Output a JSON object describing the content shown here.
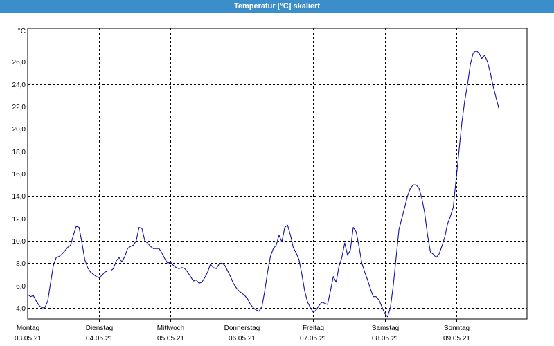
{
  "window": {
    "title": "Temperatur [°C] skaliert"
  },
  "colors": {
    "titlebar": "#3b8ec9",
    "series": "#1010a0",
    "grid": "#000000"
  },
  "chart_data": {
    "type": "line",
    "title": "Temperatur [°C] skaliert",
    "ylabel": "°C",
    "xlabel": "",
    "ylim": [
      3.0,
      29.0
    ],
    "grid": true,
    "yticks": [
      {
        "value": 4.0,
        "label": "4,0"
      },
      {
        "value": 6.0,
        "label": "6,0"
      },
      {
        "value": 8.0,
        "label": "8,0"
      },
      {
        "value": 10.0,
        "label": "10,0"
      },
      {
        "value": 12.0,
        "label": "12,0"
      },
      {
        "value": 14.0,
        "label": "14,0"
      },
      {
        "value": 16.0,
        "label": "16,0"
      },
      {
        "value": 18.0,
        "label": "18,0"
      },
      {
        "value": 20.0,
        "label": "20,0"
      },
      {
        "value": 22.0,
        "label": "22,0"
      },
      {
        "value": 24.0,
        "label": "24,0"
      },
      {
        "value": 26.0,
        "label": "26,0"
      }
    ],
    "days": [
      {
        "day": "Montag",
        "date": "03.05.21"
      },
      {
        "day": "Dienstag",
        "date": "04.05.21"
      },
      {
        "day": "Mittwoch",
        "date": "05.05.21"
      },
      {
        "day": "Donnerstag",
        "date": "06.05.21"
      },
      {
        "day": "Freitag",
        "date": "07.05.21"
      },
      {
        "day": "Samstag",
        "date": "08.05.21"
      },
      {
        "day": "Sonntag",
        "date": "09.05.21"
      }
    ],
    "x_unit": "days since start of 03.05.21",
    "x_range": [
      0,
      7.05
    ],
    "series": [
      {
        "name": "Temperatur",
        "points": [
          [
            0.0,
            5.2
          ],
          [
            0.04,
            5.0
          ],
          [
            0.08,
            5.1
          ],
          [
            0.12,
            4.6
          ],
          [
            0.16,
            4.2
          ],
          [
            0.2,
            4.0
          ],
          [
            0.24,
            4.0
          ],
          [
            0.28,
            4.6
          ],
          [
            0.32,
            6.2
          ],
          [
            0.36,
            7.8
          ],
          [
            0.4,
            8.5
          ],
          [
            0.44,
            8.6
          ],
          [
            0.48,
            8.8
          ],
          [
            0.52,
            9.1
          ],
          [
            0.56,
            9.4
          ],
          [
            0.6,
            9.6
          ],
          [
            0.64,
            10.5
          ],
          [
            0.68,
            11.3
          ],
          [
            0.72,
            11.2
          ],
          [
            0.76,
            9.8
          ],
          [
            0.8,
            8.3
          ],
          [
            0.84,
            7.6
          ],
          [
            0.88,
            7.2
          ],
          [
            0.92,
            7.0
          ],
          [
            0.96,
            6.8
          ],
          [
            1.0,
            6.7
          ],
          [
            1.04,
            6.9
          ],
          [
            1.08,
            7.2
          ],
          [
            1.12,
            7.3
          ],
          [
            1.16,
            7.3
          ],
          [
            1.2,
            7.5
          ],
          [
            1.24,
            8.2
          ],
          [
            1.28,
            8.5
          ],
          [
            1.32,
            8.1
          ],
          [
            1.36,
            8.6
          ],
          [
            1.4,
            9.3
          ],
          [
            1.44,
            9.5
          ],
          [
            1.48,
            9.6
          ],
          [
            1.52,
            10.0
          ],
          [
            1.56,
            11.2
          ],
          [
            1.6,
            11.1
          ],
          [
            1.64,
            10.0
          ],
          [
            1.68,
            9.8
          ],
          [
            1.72,
            9.5
          ],
          [
            1.76,
            9.3
          ],
          [
            1.8,
            9.3
          ],
          [
            1.84,
            9.3
          ],
          [
            1.88,
            8.9
          ],
          [
            1.92,
            8.4
          ],
          [
            1.96,
            8.0
          ],
          [
            2.0,
            8.1
          ],
          [
            2.04,
            7.8
          ],
          [
            2.08,
            7.6
          ],
          [
            2.12,
            7.5
          ],
          [
            2.16,
            7.6
          ],
          [
            2.2,
            7.5
          ],
          [
            2.24,
            7.2
          ],
          [
            2.28,
            6.8
          ],
          [
            2.32,
            6.4
          ],
          [
            2.36,
            6.5
          ],
          [
            2.4,
            6.2
          ],
          [
            2.44,
            6.3
          ],
          [
            2.48,
            6.7
          ],
          [
            2.52,
            7.2
          ],
          [
            2.56,
            7.9
          ],
          [
            2.6,
            7.6
          ],
          [
            2.64,
            7.5
          ],
          [
            2.68,
            7.9
          ],
          [
            2.72,
            8.0
          ],
          [
            2.76,
            7.8
          ],
          [
            2.8,
            7.3
          ],
          [
            2.84,
            6.8
          ],
          [
            2.88,
            6.2
          ],
          [
            2.92,
            5.8
          ],
          [
            2.96,
            5.5
          ],
          [
            3.0,
            5.3
          ],
          [
            3.04,
            5.1
          ],
          [
            3.08,
            4.8
          ],
          [
            3.12,
            4.3
          ],
          [
            3.16,
            4.0
          ],
          [
            3.2,
            3.8
          ],
          [
            3.24,
            3.7
          ],
          [
            3.28,
            4.1
          ],
          [
            3.32,
            5.5
          ],
          [
            3.36,
            7.2
          ],
          [
            3.4,
            8.6
          ],
          [
            3.44,
            9.3
          ],
          [
            3.48,
            9.6
          ],
          [
            3.52,
            10.5
          ],
          [
            3.56,
            9.9
          ],
          [
            3.6,
            11.2
          ],
          [
            3.64,
            11.4
          ],
          [
            3.68,
            10.5
          ],
          [
            3.72,
            9.4
          ],
          [
            3.76,
            8.9
          ],
          [
            3.8,
            8.3
          ],
          [
            3.84,
            7.0
          ],
          [
            3.88,
            5.5
          ],
          [
            3.92,
            4.5
          ],
          [
            3.96,
            4.0
          ],
          [
            4.0,
            3.6
          ],
          [
            4.04,
            3.8
          ],
          [
            4.08,
            4.2
          ],
          [
            4.12,
            4.5
          ],
          [
            4.16,
            4.4
          ],
          [
            4.2,
            4.3
          ],
          [
            4.24,
            5.5
          ],
          [
            4.28,
            6.8
          ],
          [
            4.32,
            6.3
          ],
          [
            4.36,
            7.7
          ],
          [
            4.4,
            8.5
          ],
          [
            4.44,
            9.8
          ],
          [
            4.48,
            8.7
          ],
          [
            4.52,
            9.2
          ],
          [
            4.56,
            11.2
          ],
          [
            4.6,
            10.8
          ],
          [
            4.64,
            9.5
          ],
          [
            4.68,
            8.0
          ],
          [
            4.72,
            7.2
          ],
          [
            4.76,
            6.5
          ],
          [
            4.8,
            5.7
          ],
          [
            4.84,
            5.0
          ],
          [
            4.88,
            5.0
          ],
          [
            4.92,
            4.7
          ],
          [
            4.96,
            4.1
          ],
          [
            5.0,
            3.5
          ],
          [
            5.04,
            3.2
          ],
          [
            5.08,
            4.0
          ],
          [
            5.12,
            6.0
          ],
          [
            5.16,
            8.5
          ],
          [
            5.2,
            11.0
          ],
          [
            5.24,
            12.0
          ],
          [
            5.28,
            13.0
          ],
          [
            5.32,
            14.0
          ],
          [
            5.36,
            14.7
          ],
          [
            5.4,
            15.0
          ],
          [
            5.44,
            15.0
          ],
          [
            5.48,
            14.7
          ],
          [
            5.52,
            13.8
          ],
          [
            5.56,
            12.5
          ],
          [
            5.6,
            10.5
          ],
          [
            5.64,
            9.0
          ],
          [
            5.68,
            8.8
          ],
          [
            5.72,
            8.5
          ],
          [
            5.76,
            8.8
          ],
          [
            5.8,
            9.5
          ],
          [
            5.84,
            10.3
          ],
          [
            5.88,
            11.5
          ],
          [
            5.92,
            12.2
          ],
          [
            5.96,
            13.0
          ],
          [
            6.0,
            15.5
          ],
          [
            6.04,
            18.0
          ],
          [
            6.08,
            20.5
          ],
          [
            6.12,
            22.5
          ],
          [
            6.16,
            24.0
          ],
          [
            6.2,
            25.8
          ],
          [
            6.24,
            26.8
          ],
          [
            6.28,
            27.0
          ],
          [
            6.32,
            26.8
          ],
          [
            6.36,
            26.3
          ],
          [
            6.4,
            26.6
          ],
          [
            6.44,
            26.0
          ],
          [
            6.48,
            25.0
          ],
          [
            6.52,
            23.8
          ],
          [
            6.56,
            22.8
          ],
          [
            6.6,
            21.8
          ]
        ]
      }
    ]
  }
}
